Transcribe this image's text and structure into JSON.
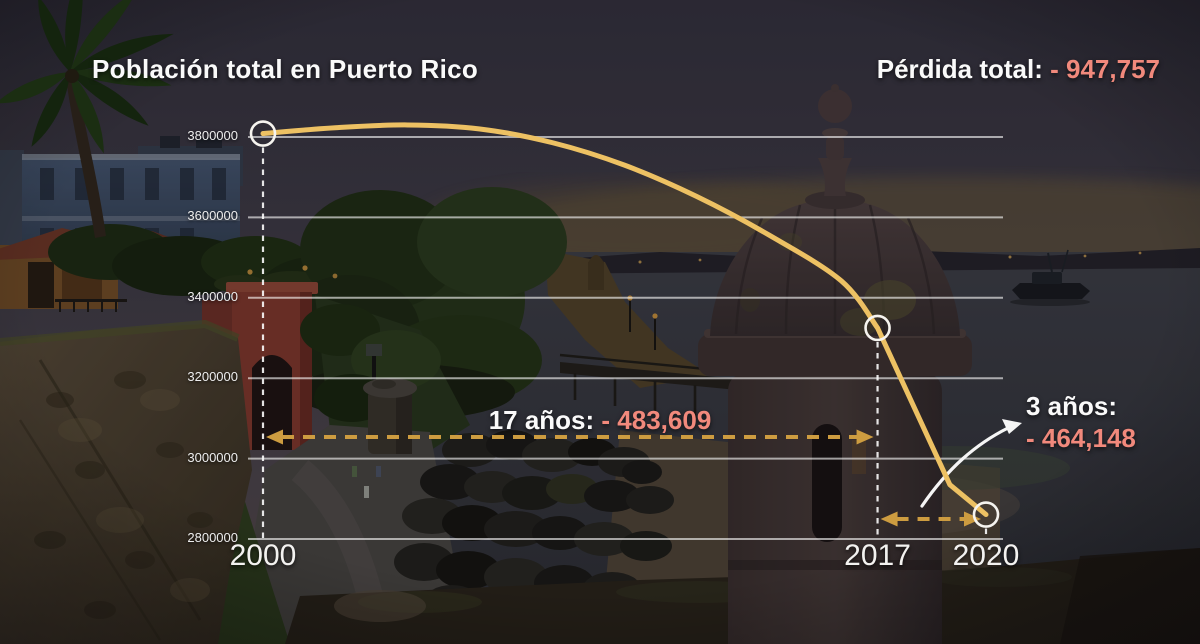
{
  "title": "Población total en Puerto Rico",
  "header": {
    "loss_label": "Pérdida total:",
    "loss_value": "- 947,757"
  },
  "annotations": {
    "period17": {
      "label": "17 años:",
      "value": "- 483,609"
    },
    "period3": {
      "label": "3 años:",
      "value": "- 464,148"
    }
  },
  "chart_data": {
    "type": "line",
    "title": "Población total en Puerto Rico",
    "x_ticks": [
      "2000",
      "2017",
      "2020"
    ],
    "x_tick_years": [
      2000,
      2017,
      2020
    ],
    "y_ticks": [
      "3800000",
      "3600000",
      "3400000",
      "3200000",
      "3000000",
      "2800000"
    ],
    "y_tick_values": [
      3800000,
      3600000,
      3400000,
      3200000,
      3000000,
      2800000
    ],
    "markers": [
      {
        "year": 2000,
        "value": 3808610
      },
      {
        "year": 2017,
        "value": 3325001
      },
      {
        "year": 2020,
        "value": 2860853
      }
    ],
    "line_points": [
      {
        "year": 2000,
        "value": 3808610
      },
      {
        "year": 2002,
        "value": 3823000
      },
      {
        "year": 2004,
        "value": 3830000
      },
      {
        "year": 2006,
        "value": 3820000
      },
      {
        "year": 2008,
        "value": 3786000
      },
      {
        "year": 2010,
        "value": 3730000
      },
      {
        "year": 2012,
        "value": 3652000
      },
      {
        "year": 2014,
        "value": 3556000
      },
      {
        "year": 2016,
        "value": 3442000
      },
      {
        "year": 2017,
        "value": 3325001
      },
      {
        "year": 2019,
        "value": 2935000
      },
      {
        "year": 2020,
        "value": 2860853
      }
    ],
    "losses": {
      "total": -947757,
      "first_17_years": -483609,
      "last_3_years": -464148
    },
    "xlim": [
      2000,
      2020
    ],
    "ylim": [
      2800000,
      3900000
    ],
    "grid": true,
    "legend": "none"
  },
  "colors": {
    "line": "#edc163",
    "dashed_arrow": "#cd9c40",
    "loss_text": "#f1897c",
    "grid": "rgba(255,255,255,0.6)",
    "axis_text": "#ededed"
  }
}
